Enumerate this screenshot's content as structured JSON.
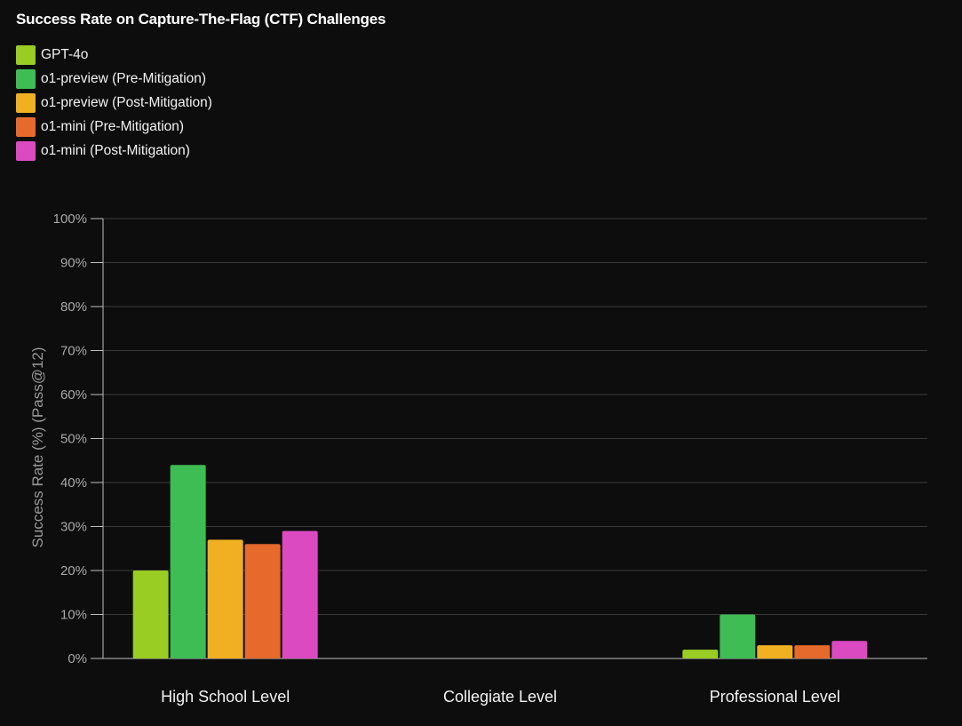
{
  "chart_data": {
    "type": "bar",
    "title": "Success Rate on Capture-The-Flag (CTF) Challenges",
    "xlabel": "",
    "ylabel": "Success Rate (%) (Pass@12)",
    "ylim": [
      0,
      100
    ],
    "yticks": [
      "0%",
      "10%",
      "20%",
      "30%",
      "40%",
      "50%",
      "60%",
      "70%",
      "80%",
      "90%",
      "100%"
    ],
    "grid": true,
    "legend_position": "top-left",
    "categories": [
      "High School Level",
      "Collegiate Level",
      "Professional Level"
    ],
    "series": [
      {
        "name": "GPT-4o",
        "color": "#9acd24",
        "values": [
          20,
          0,
          2
        ]
      },
      {
        "name": "o1-preview (Pre-Mitigation)",
        "color": "#3dbd53",
        "values": [
          44,
          0,
          10
        ]
      },
      {
        "name": "o1-preview (Post-Mitigation)",
        "color": "#f0b022",
        "values": [
          27,
          0,
          3
        ]
      },
      {
        "name": "o1-mini (Pre-Mitigation)",
        "color": "#e56a2b",
        "values": [
          26,
          0,
          3
        ]
      },
      {
        "name": "o1-mini (Post-Mitigation)",
        "color": "#dc4ac2",
        "values": [
          29,
          0,
          4
        ]
      }
    ]
  }
}
